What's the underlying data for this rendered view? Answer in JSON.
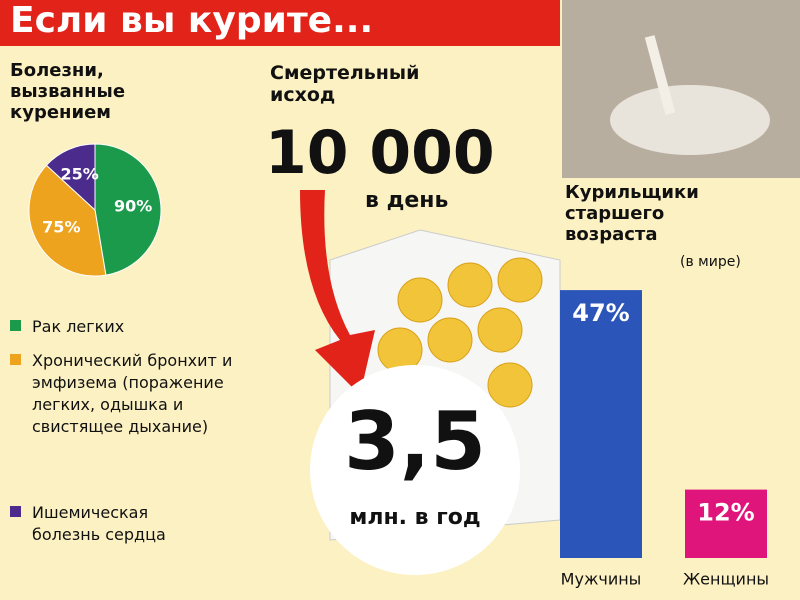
{
  "title": "Если вы курите...",
  "deaths": {
    "label": "Смертельный исход",
    "daily": "10 000",
    "daily_unit": "в день",
    "yearly": "3,5",
    "yearly_unit": "млн. в год"
  },
  "chart_data": [
    {
      "type": "pie",
      "title": "Болезни, вызванные курением",
      "categories": [
        "Рак легких",
        "Хронический бронхит и эмфизема (поражение легких, одышка и свистящее дыхание)",
        "Ишемическая болезнь сердца"
      ],
      "values": [
        90,
        75,
        25
      ],
      "value_labels": [
        "90%",
        "75%",
        "25%"
      ],
      "colors": [
        "#1c9a4c",
        "#eea31f",
        "#4b2b8c"
      ]
    },
    {
      "type": "bar",
      "title": "Курильщики старшего возраста",
      "subtitle": "(в мире)",
      "categories": [
        "Мужчины",
        "Женщины"
      ],
      "values": [
        47,
        12
      ],
      "value_labels": [
        "47%",
        "12%"
      ],
      "colors": [
        "#2b55b8",
        "#e0157c"
      ]
    }
  ]
}
